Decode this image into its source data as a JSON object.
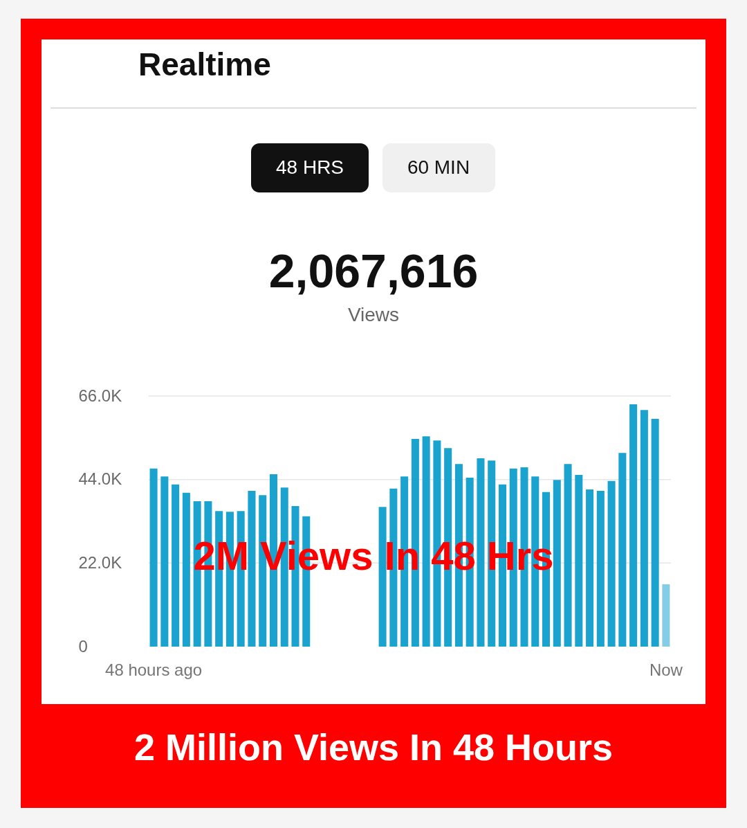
{
  "chart_data": {
    "type": "bar",
    "title": "Realtime",
    "annotations": [
      "48 HRS",
      "60 MIN",
      "2,067,616",
      "Views",
      "2M Views In 48 Hrs",
      "2 Million Views In 48 Hours"
    ],
    "categories": [
      "48 hours ago",
      null,
      null,
      null,
      null,
      null,
      null,
      null,
      null,
      null,
      null,
      null,
      null,
      null,
      null,
      null,
      null,
      null,
      null,
      null,
      null,
      null,
      null,
      null,
      null,
      null,
      null,
      null,
      null,
      null,
      null,
      null,
      null,
      null,
      null,
      null,
      null,
      null,
      null,
      null,
      null,
      null,
      null,
      null,
      null,
      null,
      null,
      "Now"
    ],
    "values": [
      46900,
      44800,
      42700,
      40500,
      38300,
      38300,
      35700,
      35500,
      35700,
      41000,
      39900,
      45400,
      41900,
      37000,
      34300,
      null,
      null,
      null,
      null,
      null,
      null,
      36800,
      41600,
      44800,
      54700,
      55400,
      54300,
      52300,
      48100,
      44500,
      49600,
      49000,
      42700,
      46900,
      47200,
      44800,
      40700,
      43900,
      48100,
      45200,
      41400,
      41000,
      43600,
      51000,
      63800,
      62300,
      60000,
      16400
    ],
    "colors": [
      "#1aa3cf",
      "#1aa3cf",
      "#1aa3cf",
      "#1aa3cf",
      "#1aa3cf",
      "#1aa3cf",
      "#1aa3cf",
      "#1aa3cf",
      "#1aa3cf",
      "#1aa3cf",
      "#1aa3cf",
      "#1aa3cf",
      "#1aa3cf",
      "#1aa3cf",
      "#1aa3cf",
      "#1aa3cf",
      "#1aa3cf",
      "#1aa3cf",
      "#1aa3cf",
      "#1aa3cf",
      "#1aa3cf",
      "#1aa3cf",
      "#1aa3cf",
      "#1aa3cf",
      "#1aa3cf",
      "#1aa3cf",
      "#1aa3cf",
      "#1aa3cf",
      "#1aa3cf",
      "#1aa3cf",
      "#1aa3cf",
      "#1aa3cf",
      "#1aa3cf",
      "#1aa3cf",
      "#1aa3cf",
      "#1aa3cf",
      "#1aa3cf",
      "#1aa3cf",
      "#1aa3cf",
      "#1aa3cf",
      "#1aa3cf",
      "#1aa3cf",
      "#1aa3cf",
      "#1aa3cf",
      "#1aa3cf",
      "#1aa3cf",
      "#1aa3cf",
      "#85cce6"
    ],
    "ylim": [
      0,
      66000
    ],
    "yticks": [
      0,
      {
        "value": 22000,
        "label": "22.0K"
      },
      {
        "value": 44000,
        "label": "44.0K"
      },
      {
        "value": 66000,
        "label": "66.0K"
      }
    ],
    "grid": "y"
  }
}
